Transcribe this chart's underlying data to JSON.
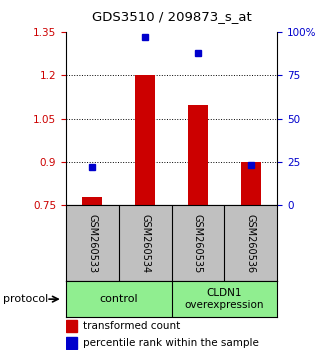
{
  "title": "GDS3510 / 209873_s_at",
  "samples": [
    "GSM260533",
    "GSM260534",
    "GSM260535",
    "GSM260536"
  ],
  "transformed_count": [
    0.778,
    1.201,
    1.098,
    0.9
  ],
  "percentile_rank": [
    22,
    97,
    88,
    23
  ],
  "left_ylim": [
    0.75,
    1.35
  ],
  "right_ylim": [
    0,
    100
  ],
  "left_yticks": [
    0.75,
    0.9,
    1.05,
    1.2,
    1.35
  ],
  "right_yticks": [
    0,
    25,
    50,
    75,
    100
  ],
  "right_yticklabels": [
    "0",
    "25",
    "50",
    "75",
    "100%"
  ],
  "left_tick_color": "#cc0000",
  "right_tick_color": "#0000cc",
  "bar_color": "#cc0000",
  "dot_color": "#0000cc",
  "grid_color": "#000000",
  "protocol_labels": [
    "control",
    "CLDN1\noverexpression"
  ],
  "protocol_bg": "#90ee90",
  "sample_bg": "#c0c0c0",
  "legend_bar_label": "transformed count",
  "legend_dot_label": "percentile rank within the sample",
  "protocol_text": "protocol"
}
